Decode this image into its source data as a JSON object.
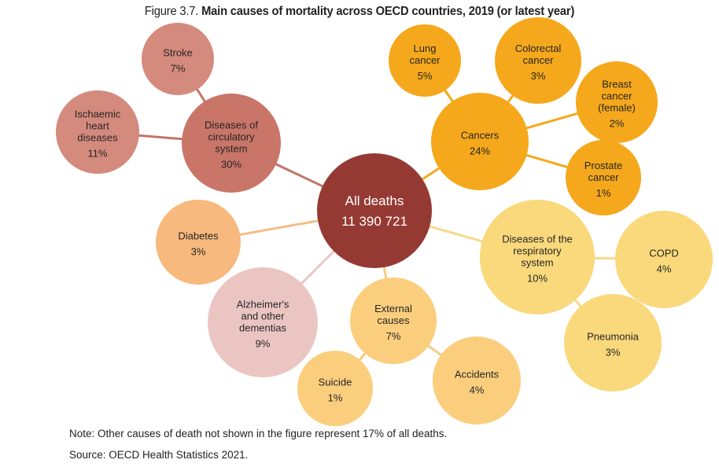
{
  "title": {
    "prefix": "Figure 3.7.",
    "main": "Main causes of mortality across OECD countries, 2019 (or latest year)"
  },
  "colors": {
    "root": "#953a33",
    "circulatory_group": "#c97568",
    "circulatory_leaf": "#d48a7c",
    "cancer": "#f5a81b",
    "respiratory": "#fad97c",
    "external": "#fbce7d",
    "diabetes": "#f7b97d",
    "alzheimer": "#ebc5c2",
    "edge_circulatory": "#c07668",
    "edge_cancer": "#f5a81b",
    "edge_respiratory": "#f7d98b",
    "edge_external": "#f7cc85",
    "edge_diabetes": "#f3bd88",
    "edge_alzheimer": "#ecc6c3"
  },
  "nodes": [
    {
      "id": "all",
      "lines": [
        "All deaths",
        "11 390 721"
      ],
      "color_key": "root",
      "big": true
    },
    {
      "id": "circ",
      "lines": [
        "Diseases of",
        "circulatory",
        "system",
        "30%"
      ],
      "color_key": "circulatory_group"
    },
    {
      "id": "stroke",
      "lines": [
        "Stroke",
        "7%"
      ],
      "color_key": "circulatory_leaf"
    },
    {
      "id": "ihd",
      "lines": [
        "Ischaemic",
        "heart",
        "diseases",
        "11%"
      ],
      "color_key": "circulatory_leaf"
    },
    {
      "id": "cancers",
      "lines": [
        "Cancers",
        "24%"
      ],
      "color_key": "cancer"
    },
    {
      "id": "lung",
      "lines": [
        "Lung",
        "cancer",
        "5%"
      ],
      "color_key": "cancer"
    },
    {
      "id": "colorectal",
      "lines": [
        "Colorectal",
        "cancer",
        "3%"
      ],
      "color_key": "cancer"
    },
    {
      "id": "breast",
      "lines": [
        "Breast",
        "cancer",
        "(female)",
        "2%"
      ],
      "color_key": "cancer"
    },
    {
      "id": "prostate",
      "lines": [
        "Prostate",
        "cancer",
        "1%"
      ],
      "color_key": "cancer"
    },
    {
      "id": "resp",
      "lines": [
        "Diseases of the",
        "respiratory",
        "system",
        "10%"
      ],
      "color_key": "respiratory"
    },
    {
      "id": "copd",
      "lines": [
        "COPD",
        "4%"
      ],
      "color_key": "respiratory"
    },
    {
      "id": "pneumonia",
      "lines": [
        "Pneumonia",
        "3%"
      ],
      "color_key": "respiratory"
    },
    {
      "id": "diabetes",
      "lines": [
        "Diabetes",
        "3%"
      ],
      "color_key": "diabetes"
    },
    {
      "id": "alzheimer",
      "lines": [
        "Alzheimer's",
        "and other",
        "dementias",
        "9%"
      ],
      "color_key": "alzheimer"
    },
    {
      "id": "external",
      "lines": [
        "External",
        "causes",
        "7%"
      ],
      "color_key": "external"
    },
    {
      "id": "suicide",
      "lines": [
        "Suicide",
        "1%"
      ],
      "color_key": "external"
    },
    {
      "id": "accidents",
      "lines": [
        "Accidents",
        "4%"
      ],
      "color_key": "external"
    }
  ],
  "edges": [
    {
      "from": "all",
      "to": "circ",
      "color_key": "edge_circulatory"
    },
    {
      "from": "circ",
      "to": "stroke",
      "color_key": "edge_circulatory"
    },
    {
      "from": "circ",
      "to": "ihd",
      "color_key": "edge_circulatory"
    },
    {
      "from": "all",
      "to": "cancers",
      "color_key": "edge_cancer"
    },
    {
      "from": "cancers",
      "to": "lung",
      "color_key": "edge_cancer"
    },
    {
      "from": "cancers",
      "to": "colorectal",
      "color_key": "edge_cancer"
    },
    {
      "from": "cancers",
      "to": "breast",
      "color_key": "edge_cancer"
    },
    {
      "from": "cancers",
      "to": "prostate",
      "color_key": "edge_cancer"
    },
    {
      "from": "all",
      "to": "resp",
      "color_key": "edge_respiratory"
    },
    {
      "from": "resp",
      "to": "copd",
      "color_key": "edge_respiratory"
    },
    {
      "from": "resp",
      "to": "pneumonia",
      "color_key": "edge_respiratory"
    },
    {
      "from": "all",
      "to": "diabetes",
      "color_key": "edge_diabetes"
    },
    {
      "from": "all",
      "to": "alzheimer",
      "color_key": "edge_alzheimer"
    },
    {
      "from": "all",
      "to": "external",
      "color_key": "edge_external"
    },
    {
      "from": "external",
      "to": "suicide",
      "color_key": "edge_external"
    },
    {
      "from": "external",
      "to": "accidents",
      "color_key": "edge_external"
    }
  ],
  "note": "Note: Other causes of death not shown in the figure represent 17% of all deaths.",
  "source": "Source: OECD Health Statistics 2021."
}
